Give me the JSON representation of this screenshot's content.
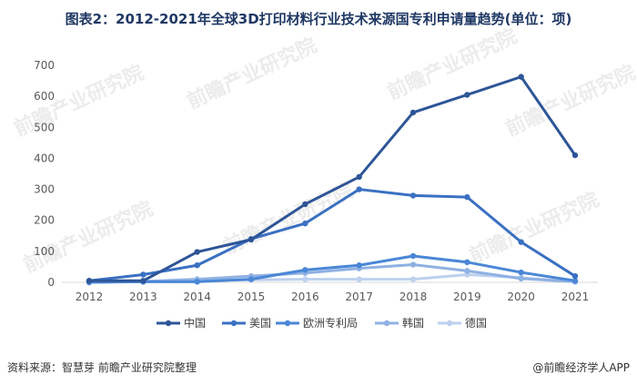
{
  "chart_data": {
    "type": "line",
    "title": "图表2：2012-2021年全球3D打印材料行业技术来源国专利申请量趋势(单位：项)",
    "x": [
      "2012",
      "2013",
      "2014",
      "2015",
      "2016",
      "2017",
      "2018",
      "2019",
      "2020",
      "2021"
    ],
    "ylim": [
      0,
      700
    ],
    "yticks": [
      0,
      100,
      200,
      300,
      400,
      500,
      600,
      700
    ],
    "grid": false,
    "legend": "bottom",
    "series": [
      {
        "name": "中国",
        "color": "#2e5597",
        "values": [
          5,
          5,
          98,
          138,
          252,
          340,
          548,
          605,
          663,
          410
        ]
      },
      {
        "name": "美国",
        "color": "#3a70c2",
        "values": [
          5,
          25,
          55,
          140,
          190,
          300,
          280,
          275,
          130,
          20
        ]
      },
      {
        "name": "欧洲专利局",
        "color": "#4a87d6",
        "values": [
          0,
          2,
          2,
          10,
          40,
          55,
          85,
          65,
          32,
          5
        ]
      },
      {
        "name": "韩国",
        "color": "#8fb1e3",
        "values": [
          0,
          3,
          10,
          20,
          30,
          45,
          57,
          37,
          12,
          2
        ]
      },
      {
        "name": "德国",
        "color": "#bdd0ee",
        "values": [
          0,
          2,
          5,
          8,
          10,
          10,
          10,
          25,
          15,
          2
        ]
      }
    ]
  },
  "watermark": "前瞻产业研究院",
  "footer": {
    "source": "资料来源：智慧芽 前瞻产业研究院整理",
    "brand": "@前瞻经济学人APP"
  }
}
